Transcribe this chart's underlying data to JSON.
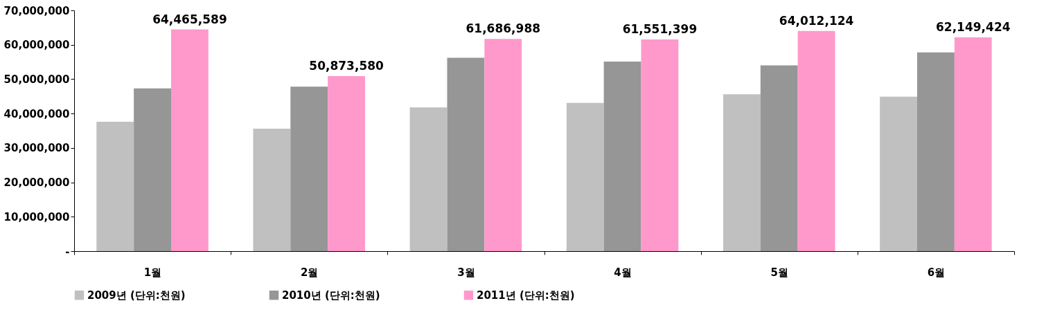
{
  "chart_data": {
    "type": "bar",
    "categories": [
      "1월",
      "2월",
      "3월",
      "4월",
      "5월",
      "6월"
    ],
    "series": [
      {
        "name": "2009년 (단위:천원)",
        "color": "#c0c0c0",
        "values": [
          37600000,
          35600000,
          41800000,
          43100000,
          45600000,
          44900000
        ]
      },
      {
        "name": "2010년 (단위:천원)",
        "color": "#969696",
        "values": [
          47300000,
          47800000,
          56200000,
          55100000,
          54000000,
          57800000
        ]
      },
      {
        "name": "2011년 (단위:천원)",
        "color": "#ff99cc",
        "values": [
          64465589,
          50873580,
          61686988,
          61551399,
          64012124,
          62149424
        ],
        "value_labels": [
          "64,465,589",
          "50,873,580",
          "61,686,988",
          "61,551,399",
          "64,012,124",
          "62,149,424"
        ]
      }
    ],
    "ylim": [
      0,
      70000000
    ],
    "yticks": [
      {
        "value": 0,
        "label": "-"
      },
      {
        "value": 10000000,
        "label": "10,000,000"
      },
      {
        "value": 20000000,
        "label": "20,000,000"
      },
      {
        "value": 30000000,
        "label": "30,000,000"
      },
      {
        "value": 40000000,
        "label": "40,000,000"
      },
      {
        "value": 50000000,
        "label": "50,000,000"
      },
      {
        "value": 60000000,
        "label": "60,000,000"
      },
      {
        "value": 70000000,
        "label": "70,000,000"
      }
    ],
    "grid": false,
    "legend": "bottom"
  }
}
